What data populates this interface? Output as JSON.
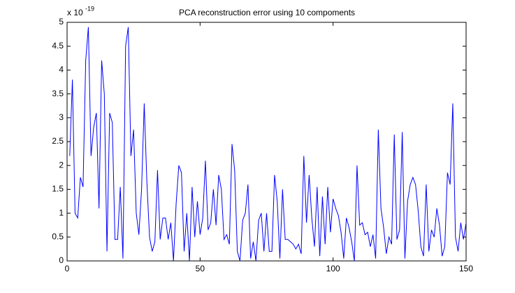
{
  "chart_data": {
    "type": "line",
    "title": "PCA reconstruction error using 10 compoments",
    "axis_multiplier": {
      "base": "x 10",
      "exponent": "-19"
    },
    "x": [
      1,
      2,
      3,
      4,
      5,
      6,
      7,
      8,
      9,
      10,
      11,
      12,
      13,
      14,
      15,
      16,
      17,
      18,
      19,
      20,
      21,
      22,
      23,
      24,
      25,
      26,
      27,
      28,
      29,
      30,
      31,
      32,
      33,
      34,
      35,
      36,
      37,
      38,
      39,
      40,
      41,
      42,
      43,
      44,
      45,
      46,
      47,
      48,
      49,
      50,
      51,
      52,
      53,
      54,
      55,
      56,
      57,
      58,
      59,
      60,
      61,
      62,
      63,
      64,
      65,
      66,
      67,
      68,
      69,
      70,
      71,
      72,
      73,
      74,
      75,
      76,
      77,
      78,
      79,
      80,
      81,
      82,
      83,
      84,
      85,
      86,
      87,
      88,
      89,
      90,
      91,
      92,
      93,
      94,
      95,
      96,
      97,
      98,
      99,
      100,
      101,
      102,
      103,
      104,
      105,
      106,
      107,
      108,
      109,
      110,
      111,
      112,
      113,
      114,
      115,
      116,
      117,
      118,
      119,
      120,
      121,
      122,
      123,
      124,
      125,
      126,
      127,
      128,
      129,
      130,
      131,
      132,
      133,
      134,
      135,
      136,
      137,
      138,
      139,
      140,
      141,
      142,
      143,
      144,
      145,
      146,
      147,
      148,
      149,
      150
    ],
    "series": [
      {
        "color": "#0000ff",
        "values": [
          2.2,
          3.8,
          1.0,
          0.9,
          1.75,
          1.55,
          4.2,
          4.9,
          2.2,
          2.8,
          3.1,
          1.1,
          4.2,
          3.5,
          0.2,
          3.1,
          2.9,
          0.45,
          0.45,
          1.55,
          0.05,
          4.5,
          4.9,
          2.2,
          2.75,
          1.0,
          0.55,
          1.5,
          3.3,
          1.65,
          0.5,
          0.2,
          0.4,
          1.9,
          0.45,
          0.9,
          0.9,
          0.45,
          0.8,
          0.0,
          1.2,
          2.0,
          1.85,
          0.2,
          1.0,
          0.0,
          1.55,
          0.5,
          1.25,
          0.55,
          0.9,
          2.1,
          0.65,
          0.8,
          1.5,
          0.75,
          1.8,
          1.5,
          0.45,
          0.55,
          0.35,
          2.45,
          1.9,
          0.2,
          0.0,
          0.85,
          1.0,
          1.6,
          0.05,
          0.4,
          0.0,
          0.85,
          1.0,
          0.2,
          1.0,
          0.2,
          0.2,
          1.8,
          1.25,
          0.05,
          1.5,
          0.45,
          0.45,
          0.4,
          0.35,
          0.25,
          0.35,
          0.15,
          2.2,
          0.8,
          1.8,
          0.9,
          0.3,
          1.55,
          0.1,
          1.35,
          0.35,
          1.55,
          0.6,
          1.3,
          1.1,
          0.95,
          0.6,
          0.05,
          0.9,
          0.7,
          0.4,
          0.0,
          2.0,
          0.75,
          0.8,
          0.55,
          0.6,
          0.3,
          0.55,
          0.05,
          2.75,
          1.1,
          0.7,
          0.15,
          0.5,
          0.35,
          2.65,
          0.45,
          0.65,
          2.7,
          0.05,
          1.25,
          1.6,
          1.75,
          1.6,
          1.05,
          0.3,
          0.1,
          1.6,
          0.2,
          0.65,
          0.5,
          1.1,
          0.75,
          0.1,
          0.3,
          1.85,
          1.6,
          3.3,
          0.5,
          0.2,
          0.8,
          0.45,
          0.8
        ]
      }
    ],
    "xlim": [
      0,
      150
    ],
    "xticks": [
      0,
      50,
      100,
      150
    ],
    "ylim": [
      0,
      5
    ],
    "yticks": [
      0,
      0.5,
      1,
      1.5,
      2,
      2.5,
      3,
      3.5,
      4,
      4.5,
      5
    ]
  }
}
